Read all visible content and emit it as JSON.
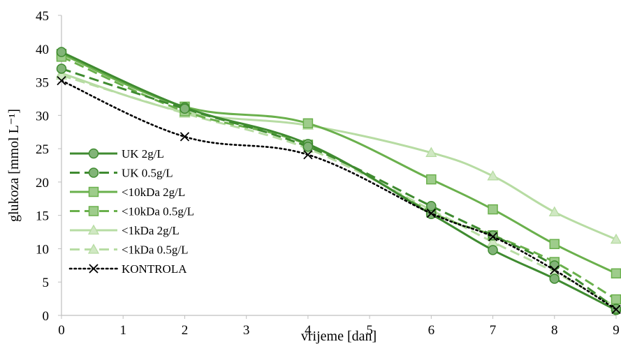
{
  "chart_data": {
    "type": "line",
    "x": [
      0,
      2,
      4,
      6,
      7,
      8,
      9
    ],
    "xlabel": "vrijeme [dan]",
    "ylabel": "glukoza [mmol L⁻¹]",
    "xlim": [
      0,
      9
    ],
    "ylim": [
      0,
      45
    ],
    "x_ticks": [
      "0",
      "1",
      "2",
      "3",
      "4",
      "5",
      "6",
      "7",
      "8",
      "9"
    ],
    "y_ticks": [
      "0",
      "5",
      "10",
      "15",
      "20",
      "25",
      "30",
      "35",
      "40",
      "45"
    ],
    "grid": false,
    "legend_position": "left",
    "series": [
      {
        "name": "UK 2g/L",
        "values": [
          39.5,
          31.2,
          25.7,
          15.2,
          9.8,
          5.5,
          0.8
        ],
        "color": "#3f8b30",
        "dash": "solid",
        "marker": "circle"
      },
      {
        "name": "UK 0.5g/L",
        "values": [
          37.0,
          31.0,
          25.3,
          16.4,
          12.0,
          7.5,
          1.0
        ],
        "color": "#3f8b30",
        "dash": "dashed",
        "marker": "circle"
      },
      {
        "name": "<10kDa 2g/L",
        "values": [
          39.2,
          31.3,
          28.8,
          20.4,
          15.9,
          10.7,
          6.3
        ],
        "color": "#6ab04c",
        "dash": "solid",
        "marker": "square"
      },
      {
        "name": "<10kDa 0.5g/L",
        "values": [
          38.8,
          30.6,
          25.6,
          15.5,
          12.0,
          8.0,
          2.4
        ],
        "color": "#6ab04c",
        "dash": "dashed",
        "marker": "square"
      },
      {
        "name": "<1kDa 2g/L",
        "values": [
          36.3,
          30.5,
          28.5,
          24.4,
          20.9,
          15.5,
          11.4
        ],
        "color": "#b7dca3",
        "dash": "solid",
        "marker": "triangle"
      },
      {
        "name": "<1kDa 0.5g/L",
        "values": [
          36.0,
          30.3,
          25.0,
          15.8,
          11.0,
          6.5,
          1.3
        ],
        "color": "#b7dca3",
        "dash": "dashed",
        "marker": "triangle"
      },
      {
        "name": "KONTROLA",
        "values": [
          35.2,
          26.8,
          24.1,
          15.3,
          11.8,
          6.8,
          0.9
        ],
        "color": "#000000",
        "dash": "dotted",
        "marker": "x"
      }
    ]
  }
}
